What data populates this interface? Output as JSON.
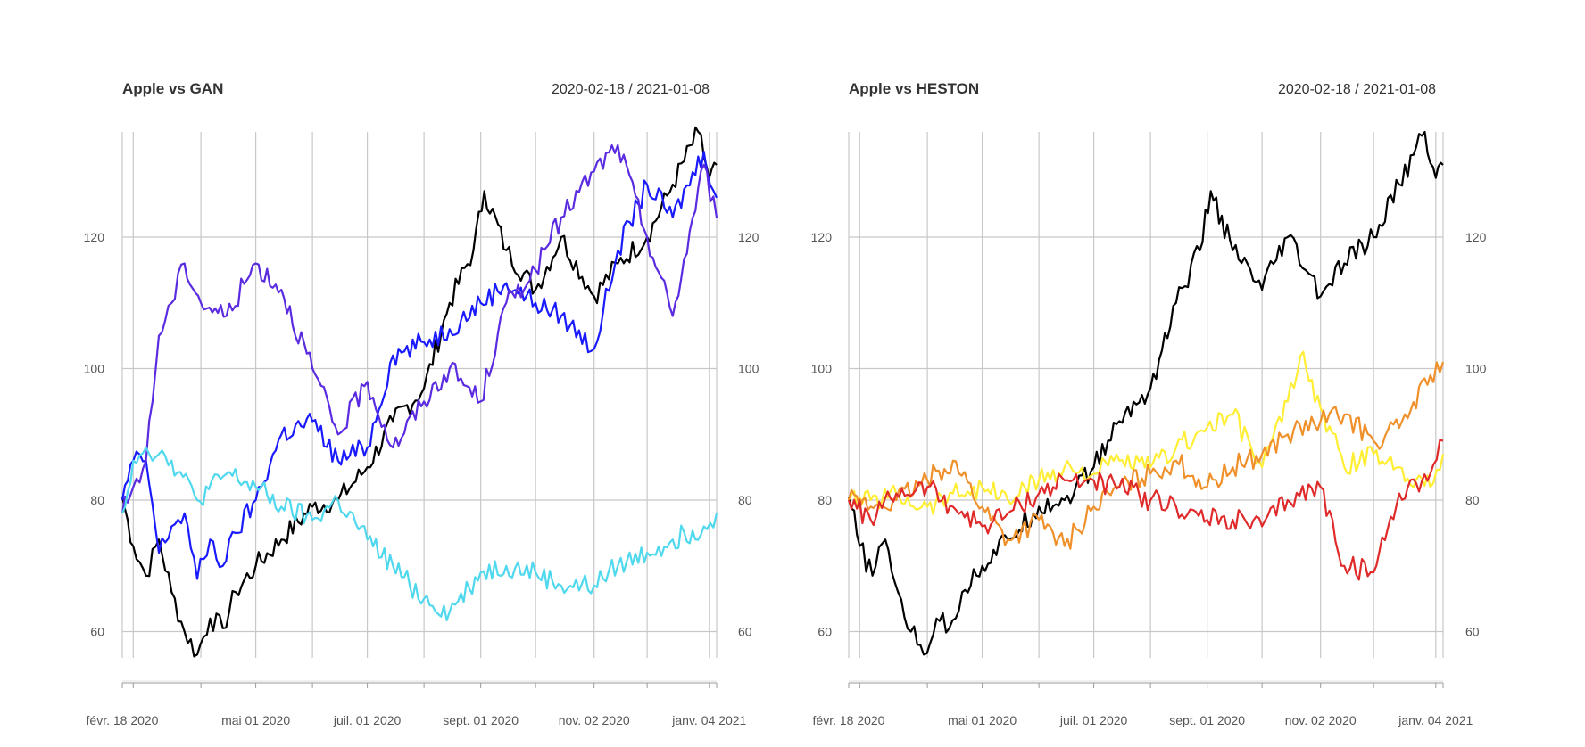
{
  "chart_data": [
    {
      "type": "line",
      "title": "Apple vs GAN",
      "date_range": "2020-02-18 / 2021-01-08",
      "ylim": [
        56,
        136
      ],
      "y_ticks": [
        60,
        80,
        100,
        120
      ],
      "x_tick_labels": [
        "févr. 18 2020",
        "mai 01 2020",
        "juil. 01 2020",
        "sept. 01 2020",
        "nov. 02 2020",
        "janv. 04 2021"
      ],
      "grid": true,
      "series": [
        {
          "color": "#000000",
          "x": [
            "2020-02-18",
            "2020-02-24",
            "2020-03-02",
            "2020-03-09",
            "2020-03-16",
            "2020-03-23",
            "2020-03-30",
            "2020-04-06",
            "2020-04-13",
            "2020-04-20",
            "2020-05-01",
            "2020-05-15",
            "2020-06-01",
            "2020-06-15",
            "2020-07-01",
            "2020-07-15",
            "2020-08-01",
            "2020-08-15",
            "2020-08-28",
            "2020-09-03",
            "2020-09-15",
            "2020-10-01",
            "2020-10-15",
            "2020-11-02",
            "2020-11-15",
            "2020-12-01",
            "2020-12-15",
            "2020-12-29",
            "2021-01-04",
            "2021-01-08"
          ],
          "values": [
            80.5,
            73,
            68.5,
            74,
            66,
            60,
            56.5,
            62,
            60.5,
            66,
            70,
            74,
            79,
            80,
            85,
            92,
            97,
            110,
            118,
            127,
            118,
            112,
            120,
            111,
            116,
            120,
            128,
            136,
            129,
            131
          ]
        },
        {
          "color": "#1a1aff",
          "x": [
            "2020-02-18",
            "2020-02-24",
            "2020-03-02",
            "2020-03-09",
            "2020-03-16",
            "2020-03-23",
            "2020-03-30",
            "2020-04-06",
            "2020-04-13",
            "2020-04-20",
            "2020-05-01",
            "2020-05-15",
            "2020-06-01",
            "2020-06-15",
            "2020-07-01",
            "2020-07-15",
            "2020-08-01",
            "2020-08-15",
            "2020-09-01",
            "2020-09-15",
            "2020-10-01",
            "2020-10-15",
            "2020-11-02",
            "2020-11-15",
            "2020-12-01",
            "2020-12-15",
            "2021-01-01",
            "2021-01-08"
          ],
          "values": [
            80,
            86,
            86,
            72,
            76,
            78,
            68,
            74,
            70,
            75,
            80,
            90,
            92,
            86,
            88,
            102,
            104,
            106,
            110,
            113,
            110,
            108,
            103,
            118,
            128,
            123,
            133,
            126
          ]
        },
        {
          "color": "#5a2be0",
          "x": [
            "2020-02-18",
            "2020-02-24",
            "2020-03-02",
            "2020-03-09",
            "2020-03-16",
            "2020-03-23",
            "2020-04-01",
            "2020-04-15",
            "2020-05-01",
            "2020-05-15",
            "2020-06-01",
            "2020-06-15",
            "2020-07-01",
            "2020-07-15",
            "2020-08-01",
            "2020-08-15",
            "2020-09-01",
            "2020-09-15",
            "2020-10-01",
            "2020-10-15",
            "2020-11-02",
            "2020-11-15",
            "2020-12-01",
            "2020-12-15",
            "2021-01-01",
            "2021-01-08"
          ],
          "values": [
            78,
            82,
            86,
            105,
            110,
            116,
            110,
            108,
            116,
            112,
            100,
            90,
            98,
            88,
            95,
            100,
            95,
            110,
            115,
            123,
            130,
            134,
            120,
            108,
            131,
            123
          ]
        },
        {
          "color": "#4fd8ee",
          "x": [
            "2020-02-18",
            "2020-02-24",
            "2020-03-02",
            "2020-03-09",
            "2020-03-16",
            "2020-03-30",
            "2020-04-15",
            "2020-05-01",
            "2020-05-15",
            "2020-06-01",
            "2020-06-15",
            "2020-07-01",
            "2020-07-15",
            "2020-08-01",
            "2020-08-15",
            "2020-09-01",
            "2020-09-15",
            "2020-10-01",
            "2020-10-15",
            "2020-11-02",
            "2020-11-15",
            "2020-12-01",
            "2020-12-15",
            "2021-01-01",
            "2021-01-08"
          ],
          "values": [
            78,
            86,
            88,
            87,
            86,
            80,
            84,
            82,
            79,
            77,
            80,
            74,
            70,
            65,
            63,
            69,
            70,
            69,
            67,
            67,
            70,
            72,
            74,
            76,
            78
          ]
        }
      ]
    },
    {
      "type": "line",
      "title": "Apple vs HESTON",
      "date_range": "2020-02-18 / 2021-01-08",
      "ylim": [
        56,
        136
      ],
      "y_ticks": [
        60,
        80,
        100,
        120
      ],
      "x_tick_labels": [
        "févr. 18 2020",
        "mai 01 2020",
        "juil. 01 2020",
        "sept. 01 2020",
        "nov. 02 2020",
        "janv. 04 2021"
      ],
      "grid": true,
      "series": [
        {
          "color": "#000000",
          "x": [
            "2020-02-18",
            "2020-02-24",
            "2020-03-02",
            "2020-03-09",
            "2020-03-16",
            "2020-03-23",
            "2020-03-30",
            "2020-04-06",
            "2020-04-13",
            "2020-04-20",
            "2020-05-01",
            "2020-05-15",
            "2020-06-01",
            "2020-06-15",
            "2020-07-01",
            "2020-07-15",
            "2020-08-01",
            "2020-08-15",
            "2020-08-28",
            "2020-09-03",
            "2020-09-15",
            "2020-10-01",
            "2020-10-15",
            "2020-11-02",
            "2020-11-15",
            "2020-12-01",
            "2020-12-15",
            "2020-12-29",
            "2021-01-04",
            "2021-01-08"
          ],
          "values": [
            80.5,
            73,
            68.5,
            74,
            66,
            60,
            56.5,
            62,
            60.5,
            66,
            70,
            74,
            79,
            80,
            85,
            92,
            97,
            110,
            118,
            127,
            118,
            112,
            120,
            111,
            116,
            120,
            128,
            136,
            129,
            131
          ]
        },
        {
          "color": "#ffee33",
          "x": [
            "2020-02-18",
            "2020-03-01",
            "2020-03-15",
            "2020-04-01",
            "2020-04-15",
            "2020-05-01",
            "2020-05-15",
            "2020-06-01",
            "2020-06-15",
            "2020-07-01",
            "2020-07-15",
            "2020-08-01",
            "2020-08-15",
            "2020-09-01",
            "2020-09-15",
            "2020-10-01",
            "2020-10-15",
            "2020-10-22",
            "2020-11-02",
            "2020-11-15",
            "2020-12-01",
            "2020-12-15",
            "2021-01-01",
            "2021-01-08"
          ],
          "values": [
            80,
            80,
            81,
            79,
            81,
            82,
            80,
            83,
            85,
            84,
            86,
            85,
            88,
            91,
            93,
            85,
            95,
            102,
            94,
            85,
            87,
            85,
            82,
            87
          ]
        },
        {
          "color": "#f0902a",
          "x": [
            "2020-02-18",
            "2020-03-01",
            "2020-03-15",
            "2020-04-01",
            "2020-04-15",
            "2020-05-01",
            "2020-05-15",
            "2020-06-01",
            "2020-06-15",
            "2020-07-01",
            "2020-07-15",
            "2020-08-01",
            "2020-08-15",
            "2020-09-01",
            "2020-09-15",
            "2020-10-01",
            "2020-10-15",
            "2020-11-02",
            "2020-11-15",
            "2020-12-01",
            "2020-12-15",
            "2021-01-01",
            "2021-01-08"
          ],
          "values": [
            80,
            79,
            80,
            83,
            86,
            79,
            74,
            77,
            73,
            79,
            82,
            84,
            86,
            82,
            85,
            87,
            90,
            92,
            93,
            89,
            91,
            99,
            101
          ]
        },
        {
          "color": "#e02a2a",
          "x": [
            "2020-02-18",
            "2020-03-01",
            "2020-03-15",
            "2020-04-01",
            "2020-04-15",
            "2020-05-01",
            "2020-05-15",
            "2020-06-01",
            "2020-06-15",
            "2020-07-01",
            "2020-07-15",
            "2020-08-01",
            "2020-08-15",
            "2020-09-01",
            "2020-09-15",
            "2020-10-01",
            "2020-10-15",
            "2020-11-02",
            "2020-11-15",
            "2020-12-01",
            "2020-12-15",
            "2021-01-01",
            "2021-01-08"
          ],
          "values": [
            80,
            77,
            81,
            82,
            79,
            76,
            78,
            81,
            83,
            83,
            82,
            80,
            79,
            77,
            77,
            76,
            80,
            82,
            70,
            69,
            81,
            84,
            89
          ]
        }
      ]
    }
  ]
}
